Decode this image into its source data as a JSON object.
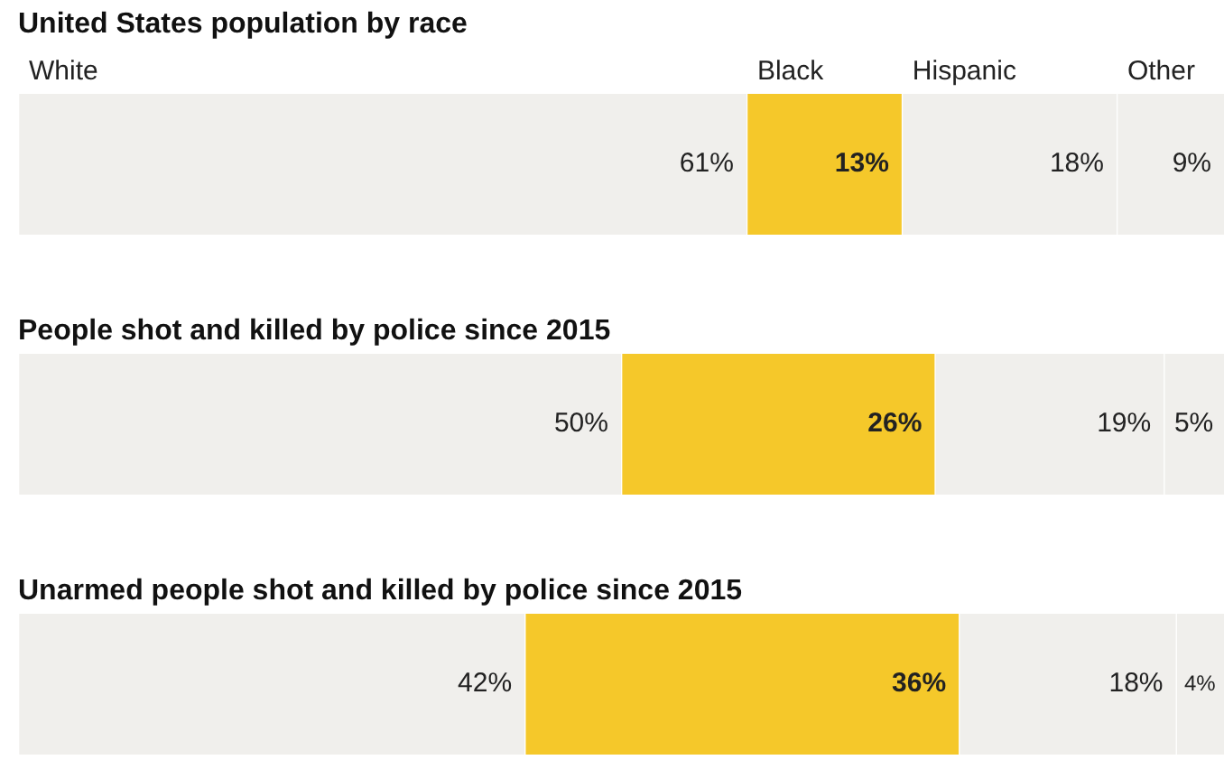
{
  "chart_data": [
    {
      "type": "bar",
      "orientation": "horizontal",
      "stacked": true,
      "tick_labels": false,
      "title": "United States population by race",
      "categories": [
        null
      ],
      "series": [
        {
          "name": "White",
          "color": "#f0efec",
          "values": [
            61
          ],
          "value_labels": [
            "61%"
          ]
        },
        {
          "name": "Black",
          "color": "#f5c82a",
          "values": [
            13
          ],
          "value_labels": [
            "13%"
          ]
        },
        {
          "name": "Hispanic",
          "color": "#f0efec",
          "values": [
            18
          ],
          "value_labels": [
            "18%"
          ]
        },
        {
          "name": "Other",
          "color": "#f0efec",
          "values": [
            9
          ],
          "value_labels": [
            "9%"
          ]
        }
      ]
    },
    {
      "type": "bar",
      "orientation": "horizontal",
      "stacked": true,
      "tick_labels": false,
      "title": "People shot and killed by police since 2015",
      "categories": [
        null
      ],
      "series": [
        {
          "color": "#f0efec",
          "values": [
            50
          ],
          "value_labels": [
            "50%"
          ]
        },
        {
          "color": "#f5c82a",
          "values": [
            26
          ],
          "value_labels": [
            "26%"
          ]
        },
        {
          "color": "#f0efec",
          "values": [
            19
          ],
          "value_labels": [
            "19%"
          ]
        },
        {
          "color": "#f0efec",
          "values": [
            5
          ],
          "value_labels": [
            "5%"
          ]
        }
      ]
    },
    {
      "type": "bar",
      "orientation": "horizontal",
      "stacked": true,
      "tick_labels": false,
      "title": "Unarmed people shot and killed by police since 2015",
      "categories": [
        null
      ],
      "series": [
        {
          "color": "#f0efec",
          "values": [
            42
          ],
          "value_labels": [
            "42%"
          ]
        },
        {
          "color": "#f5c82a",
          "values": [
            36
          ],
          "value_labels": [
            "36%"
          ]
        },
        {
          "color": "#f0efec",
          "values": [
            18
          ],
          "value_labels": [
            "18%"
          ]
        },
        {
          "color": "#f0efec",
          "values": [
            4
          ],
          "value_labels": [
            "4%"
          ]
        }
      ]
    }
  ]
}
